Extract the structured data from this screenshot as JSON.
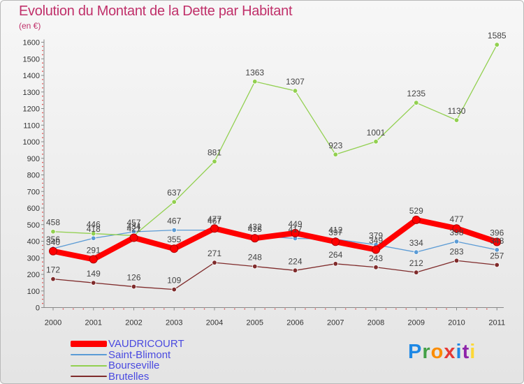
{
  "header": {
    "title": "Evolution du Montant de la Dette par Habitant",
    "subtitle": "(en €)"
  },
  "logo": {
    "letters": [
      "P",
      "r",
      "o",
      "x",
      "i",
      "t",
      "i"
    ],
    "colors": [
      "#1e88e5",
      "#43a047",
      "#fb8c00",
      "#e53935",
      "#1e88e5",
      "#8e24aa",
      "#fdd835"
    ]
  },
  "chart_data": {
    "type": "line",
    "categories": [
      "2000",
      "2001",
      "2002",
      "2003",
      "2004",
      "2005",
      "2006",
      "2007",
      "2008",
      "2009",
      "2010",
      "2011"
    ],
    "ylim": [
      0,
      1600
    ],
    "yticks": [
      0,
      100,
      200,
      300,
      400,
      500,
      600,
      700,
      800,
      900,
      1000,
      1100,
      1200,
      1300,
      1400,
      1500,
      1600
    ],
    "grid": false,
    "legend_position": "bottom-left",
    "series": [
      {
        "name": "VAUDRICOURT",
        "color": "#ff0000",
        "values": [
          340,
          291,
          421,
          355,
          477,
          418,
          449,
          397,
          349,
          529,
          477,
          396
        ]
      },
      {
        "name": "Saint-Blimont",
        "color": "#5b9bd5",
        "values": [
          356,
          418,
          457,
          467,
          467,
          432,
          417,
          412,
          379,
          334,
          398,
          348
        ]
      },
      {
        "name": "Bourseville",
        "color": "#92d050",
        "values": [
          458,
          446,
          434,
          637,
          881,
          1363,
          1307,
          923,
          1001,
          1235,
          1130,
          1585
        ]
      },
      {
        "name": "Brutelles",
        "color": "#7f2b2b",
        "values": [
          172,
          149,
          126,
          109,
          271,
          248,
          224,
          264,
          243,
          212,
          283,
          257
        ]
      }
    ]
  }
}
